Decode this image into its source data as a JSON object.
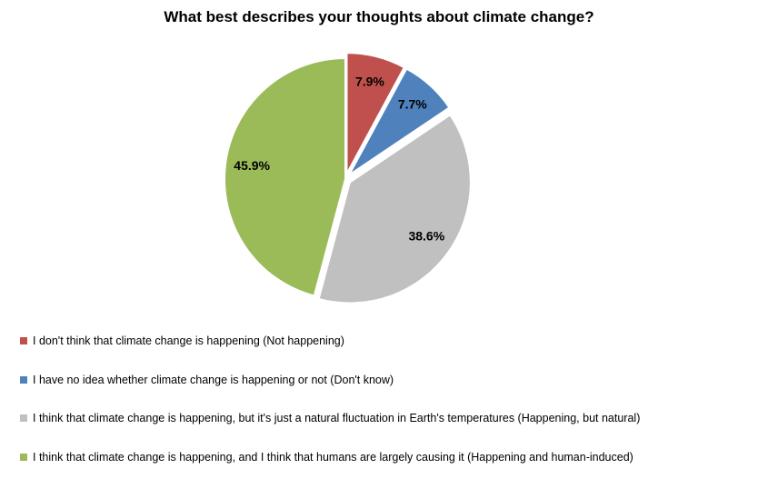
{
  "chart_data": {
    "type": "pie",
    "title": "What best describes your thoughts about climate change?",
    "slices": [
      {
        "label": "I don't think that climate change is happening (Not happening)",
        "value": 7.9,
        "value_label": "7.9%",
        "color": "#c0504d",
        "exploded": true
      },
      {
        "label": "I have no idea whether climate change is happening or not (Don't know)",
        "value": 7.7,
        "value_label": "7.7%",
        "color": "#4f81bd",
        "exploded": true
      },
      {
        "label": "I think that climate change is happening, but it's just a natural fluctuation in Earth's temperatures (Happening, but natural)",
        "value": 38.6,
        "value_label": "38.6%",
        "color": "#c0c0c0",
        "exploded": true
      },
      {
        "label": "I think that climate change is happening, and I think that humans are largely causing it (Happening and human-induced)",
        "value": 45.9,
        "value_label": "45.9%",
        "color": "#9bbb59",
        "exploded": false
      }
    ],
    "legend_position": "bottom"
  }
}
